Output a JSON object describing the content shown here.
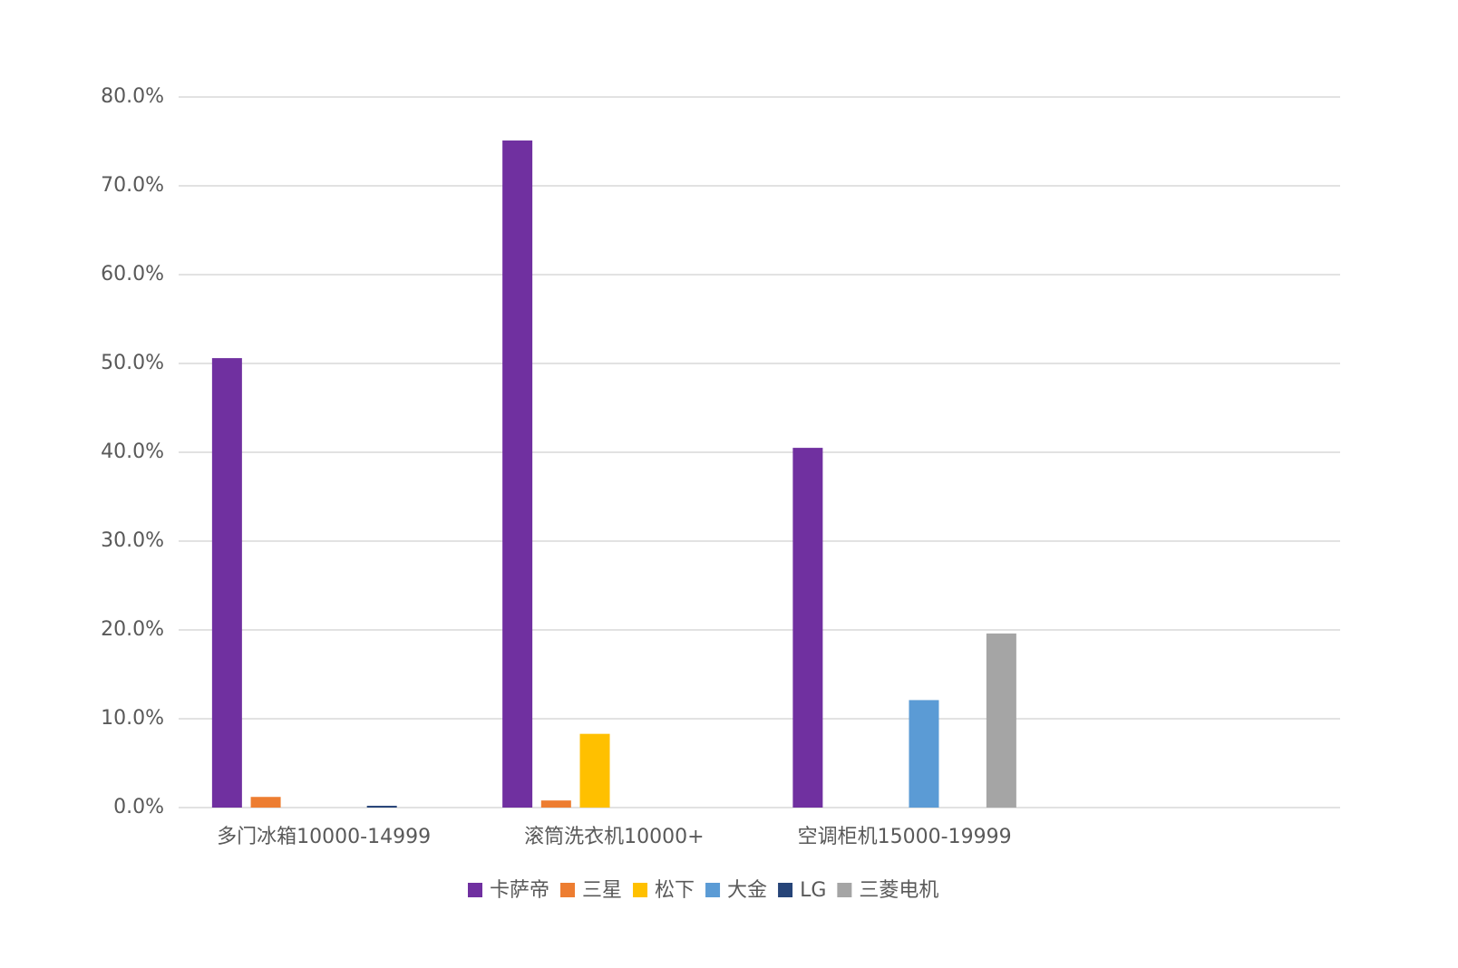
{
  "chart_data": {
    "type": "bar",
    "categories": [
      "多门冰箱10000-14999",
      "滚筒洗衣机10000+",
      "空调柜机15000-19999",
      null
    ],
    "series": [
      {
        "name": "卡萨帝",
        "color": "#7030a0",
        "values": [
          50.6,
          75.1,
          40.5,
          null
        ]
      },
      {
        "name": "三星",
        "color": "#ed7d31",
        "values": [
          1.2,
          0.8,
          null,
          null
        ]
      },
      {
        "name": "松下",
        "color": "#ffc000",
        "values": [
          null,
          8.3,
          null,
          null
        ]
      },
      {
        "name": "大金",
        "color": "#5b9bd5",
        "values": [
          null,
          null,
          12.1,
          null
        ]
      },
      {
        "name": "LG",
        "color": "#264478",
        "values": [
          0.2,
          null,
          null,
          null
        ]
      },
      {
        "name": "三菱电机",
        "color": "#a5a5a5",
        "values": [
          null,
          null,
          19.6,
          null
        ]
      }
    ],
    "ylim": [
      0,
      80
    ],
    "yticks": [
      {
        "value": 0,
        "label": "0.0%"
      },
      {
        "value": 10,
        "label": "10.0%"
      },
      {
        "value": 20,
        "label": "20.0%"
      },
      {
        "value": 30,
        "label": "30.0%"
      },
      {
        "value": 40,
        "label": "40.0%"
      },
      {
        "value": 50,
        "label": "50.0%"
      },
      {
        "value": 60,
        "label": "60.0%"
      },
      {
        "value": 70,
        "label": "70.0%"
      },
      {
        "value": 80,
        "label": "80.0%"
      }
    ],
    "grid": true,
    "legend": "bottom"
  }
}
